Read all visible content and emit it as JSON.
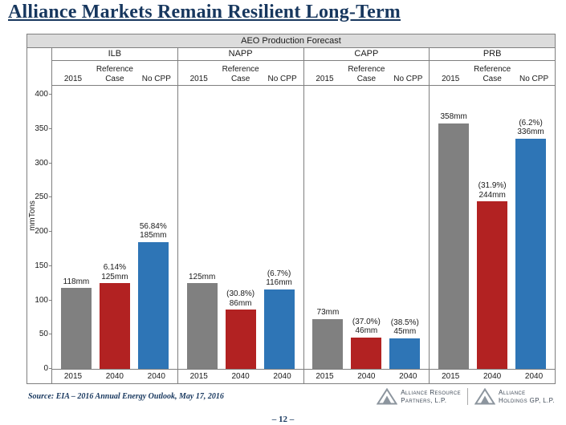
{
  "slide": {
    "title": "Alliance Markets Remain Resilient Long-Term",
    "source": "Source:  EIA – 2016 Annual Energy Outlook, May 17, 2016",
    "page_number": "– 12 –"
  },
  "logos": [
    {
      "line1": "Alliance Resource",
      "line2": "Partners, L.P."
    },
    {
      "line1": "Alliance",
      "line2": "Holdings GP, L.P."
    }
  ],
  "colors": {
    "accent_navy": "#17375E",
    "bar_gray": "#808080",
    "bar_red": "#B22222",
    "bar_blue": "#2E75B6",
    "chart_border": "#7F7F7F",
    "chart_header_bg": "#DCDCDC"
  },
  "chart_data": {
    "type": "bar",
    "title": "AEO Production Forecast",
    "ylabel": "mmTons",
    "ylim": [
      0,
      400
    ],
    "yticks": [
      0,
      50,
      100,
      150,
      200,
      250,
      300,
      350,
      400
    ],
    "grid": false,
    "column_headers": [
      "2015",
      "Reference Case",
      "No CPP"
    ],
    "x_labels": [
      "2015",
      "2040",
      "2040"
    ],
    "series_colors": {
      "y2015": "#808080",
      "reference": "#B22222",
      "nocpp": "#2E75B6"
    },
    "series_legend": [
      "2015",
      "Reference Case 2040",
      "No CPP 2040"
    ],
    "groups": [
      {
        "name": "ILB",
        "bars": [
          {
            "series": "y2015",
            "value": 118,
            "label_lines": [
              "118mm"
            ]
          },
          {
            "series": "reference",
            "value": 125,
            "label_lines": [
              "6.14%",
              "125mm"
            ]
          },
          {
            "series": "nocpp",
            "value": 185,
            "label_lines": [
              "56.84%",
              "185mm"
            ]
          }
        ]
      },
      {
        "name": "NAPP",
        "bars": [
          {
            "series": "y2015",
            "value": 125,
            "label_lines": [
              "125mm"
            ]
          },
          {
            "series": "reference",
            "value": 86,
            "label_lines": [
              "(30.8%)",
              "86mm"
            ]
          },
          {
            "series": "nocpp",
            "value": 116,
            "label_lines": [
              "(6.7%)",
              "116mm"
            ]
          }
        ]
      },
      {
        "name": "CAPP",
        "bars": [
          {
            "series": "y2015",
            "value": 73,
            "label_lines": [
              "73mm"
            ]
          },
          {
            "series": "reference",
            "value": 46,
            "label_lines": [
              "(37.0%)",
              "46mm"
            ]
          },
          {
            "series": "nocpp",
            "value": 45,
            "label_lines": [
              "(38.5%)",
              "45mm"
            ]
          }
        ]
      },
      {
        "name": "PRB",
        "bars": [
          {
            "series": "y2015",
            "value": 358,
            "label_lines": [
              "358mm"
            ]
          },
          {
            "series": "reference",
            "value": 244,
            "label_lines": [
              "(31.9%)",
              "244mm"
            ]
          },
          {
            "series": "nocpp",
            "value": 336,
            "label_lines": [
              "(6.2%)",
              "336mm"
            ]
          }
        ]
      }
    ]
  }
}
